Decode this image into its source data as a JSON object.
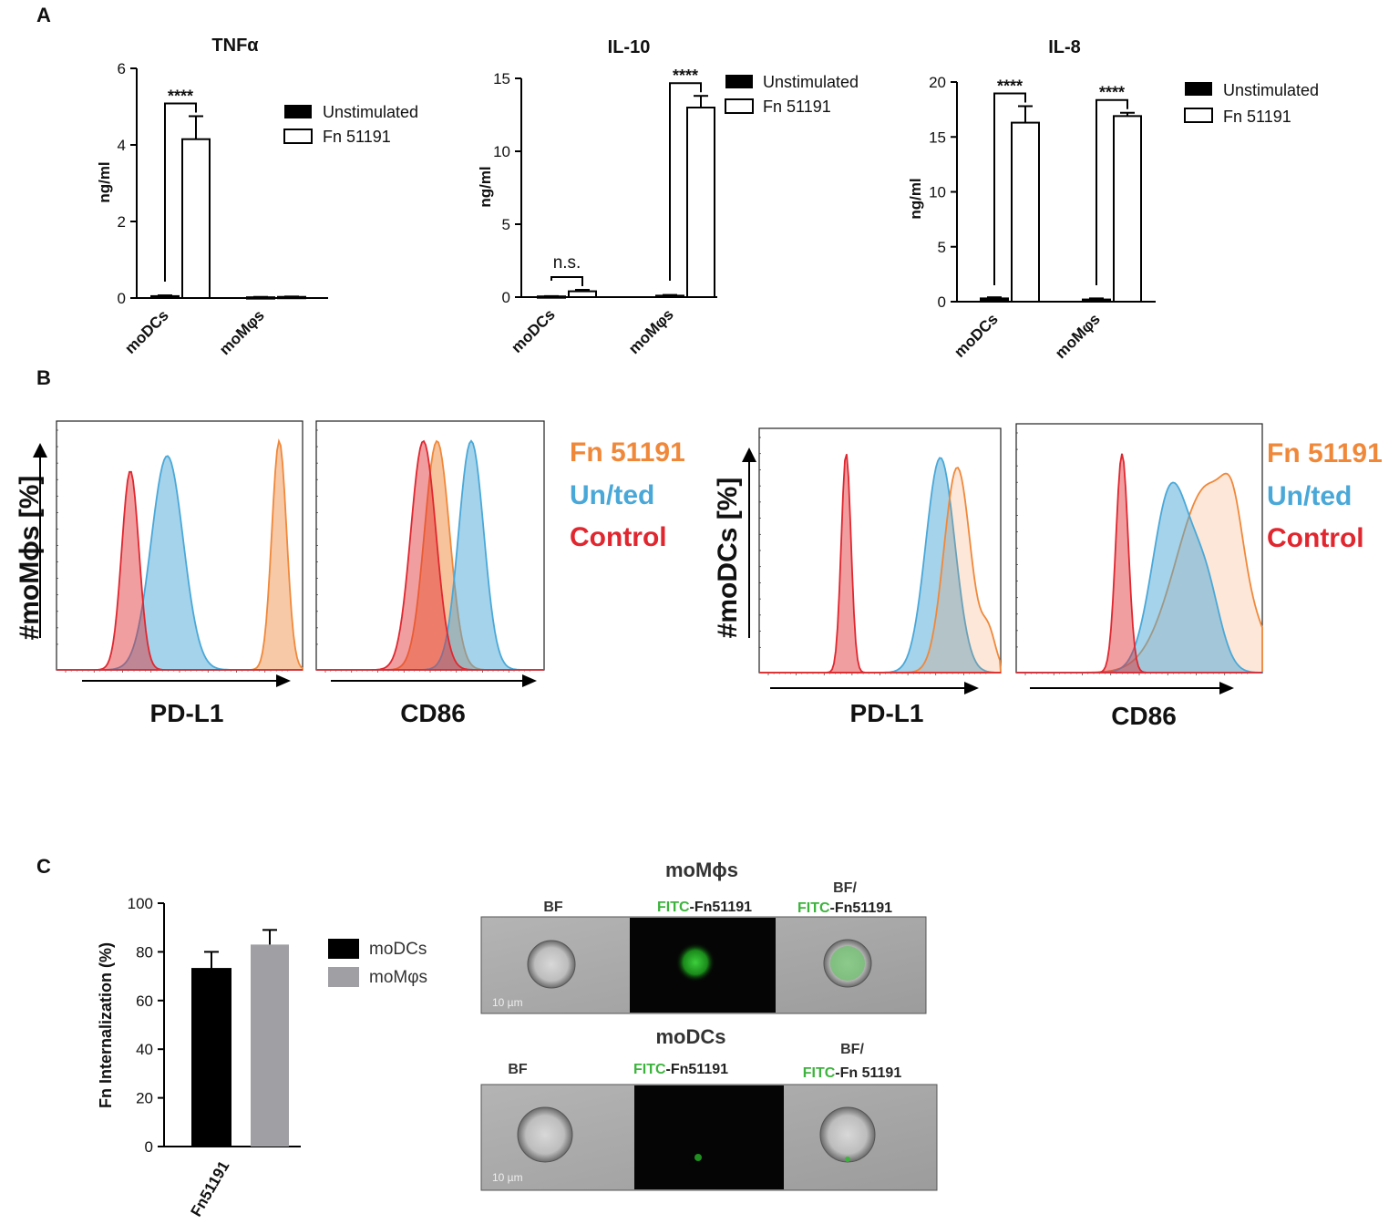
{
  "panels": {
    "a": "A",
    "b": "B",
    "c": "C"
  },
  "chart_data": [
    {
      "type": "bar",
      "title": "TNFα",
      "ylabel": "ng/ml",
      "categories": [
        "moDCs",
        "moMφs"
      ],
      "ylim": [
        0,
        6
      ],
      "yticks": [
        "0",
        "2",
        "4",
        "6"
      ],
      "series": [
        {
          "name": "Unstimulated",
          "color": "#000000",
          "values": [
            0.05,
            0.02
          ],
          "errors": [
            0.02,
            0.01
          ]
        },
        {
          "name": "Fn 51191",
          "color": "#ffffff",
          "values": [
            4.15,
            0.03
          ],
          "errors": [
            0.6,
            0.01
          ]
        }
      ],
      "significance": [
        "****",
        ""
      ]
    },
    {
      "type": "bar",
      "title": "IL-10",
      "ylabel": "ng/ml",
      "categories": [
        "moDCs",
        "moMφs"
      ],
      "ylim": [
        0,
        15
      ],
      "yticks": [
        "0",
        "5",
        "10",
        "15"
      ],
      "series": [
        {
          "name": "Unstimulated",
          "color": "#000000",
          "values": [
            0.05,
            0.1
          ],
          "errors": [
            0.02,
            0.05
          ]
        },
        {
          "name": "Fn 51191",
          "color": "#ffffff",
          "values": [
            0.4,
            13.0
          ],
          "errors": [
            0.1,
            0.8
          ]
        }
      ],
      "significance": [
        "n.s.",
        "****"
      ]
    },
    {
      "type": "bar",
      "title": "IL-8",
      "ylabel": "ng/ml",
      "categories": [
        "moDCs",
        "moMφs"
      ],
      "ylim": [
        0,
        20
      ],
      "yticks": [
        "0",
        "5",
        "10",
        "15",
        "20"
      ],
      "series": [
        {
          "name": "Unstimulated",
          "color": "#000000",
          "values": [
            0.3,
            0.2
          ],
          "errors": [
            0.1,
            0.1
          ]
        },
        {
          "name": "Fn 51191",
          "color": "#ffffff",
          "values": [
            16.3,
            16.9
          ],
          "errors": [
            1.5,
            0.3
          ]
        }
      ],
      "significance": [
        "****",
        "****"
      ]
    },
    {
      "type": "bar",
      "ylabel": "Fn Internalization (%)",
      "categories": [
        "Fn51191"
      ],
      "ylim": [
        0,
        100
      ],
      "yticks": [
        "0",
        "20",
        "40",
        "60",
        "80",
        "100"
      ],
      "series": [
        {
          "name": "moDCs",
          "color": "#000000",
          "values": [
            73
          ],
          "errors": [
            7
          ]
        },
        {
          "name": "moMφs",
          "color": "#a0a0a4",
          "values": [
            83
          ],
          "errors": [
            6
          ]
        }
      ]
    }
  ],
  "flow": {
    "legend": [
      {
        "label": "Fn 51191",
        "color": "#f0883a"
      },
      {
        "label": "Un/ted",
        "color": "#4aa8d8"
      },
      {
        "label": "Control",
        "color": "#e0272f"
      }
    ],
    "groups": [
      {
        "ylabel": "#moMɸs [%]",
        "plots": [
          "PD-L1",
          "CD86"
        ]
      },
      {
        "ylabel": "#moDCs [%]",
        "plots": [
          "PD-L1",
          "CD86"
        ]
      }
    ]
  },
  "imaging": {
    "rows": [
      {
        "title": "moMɸs",
        "bf": "BF",
        "fitc_prefix": "FITC",
        "fitc_suffix": "-Fn51191",
        "overlay_top": "BF/",
        "overlay_prefix": "FITC",
        "overlay_suffix": "-Fn51191",
        "scale": "10 µm"
      },
      {
        "title": "moDCs",
        "bf": "BF",
        "fitc_prefix": "FITC",
        "fitc_suffix": "-Fn51191",
        "overlay_top": "BF/",
        "overlay_prefix": "FITC",
        "overlay_suffix": "-Fn 51191",
        "scale": "10 µm"
      }
    ]
  }
}
